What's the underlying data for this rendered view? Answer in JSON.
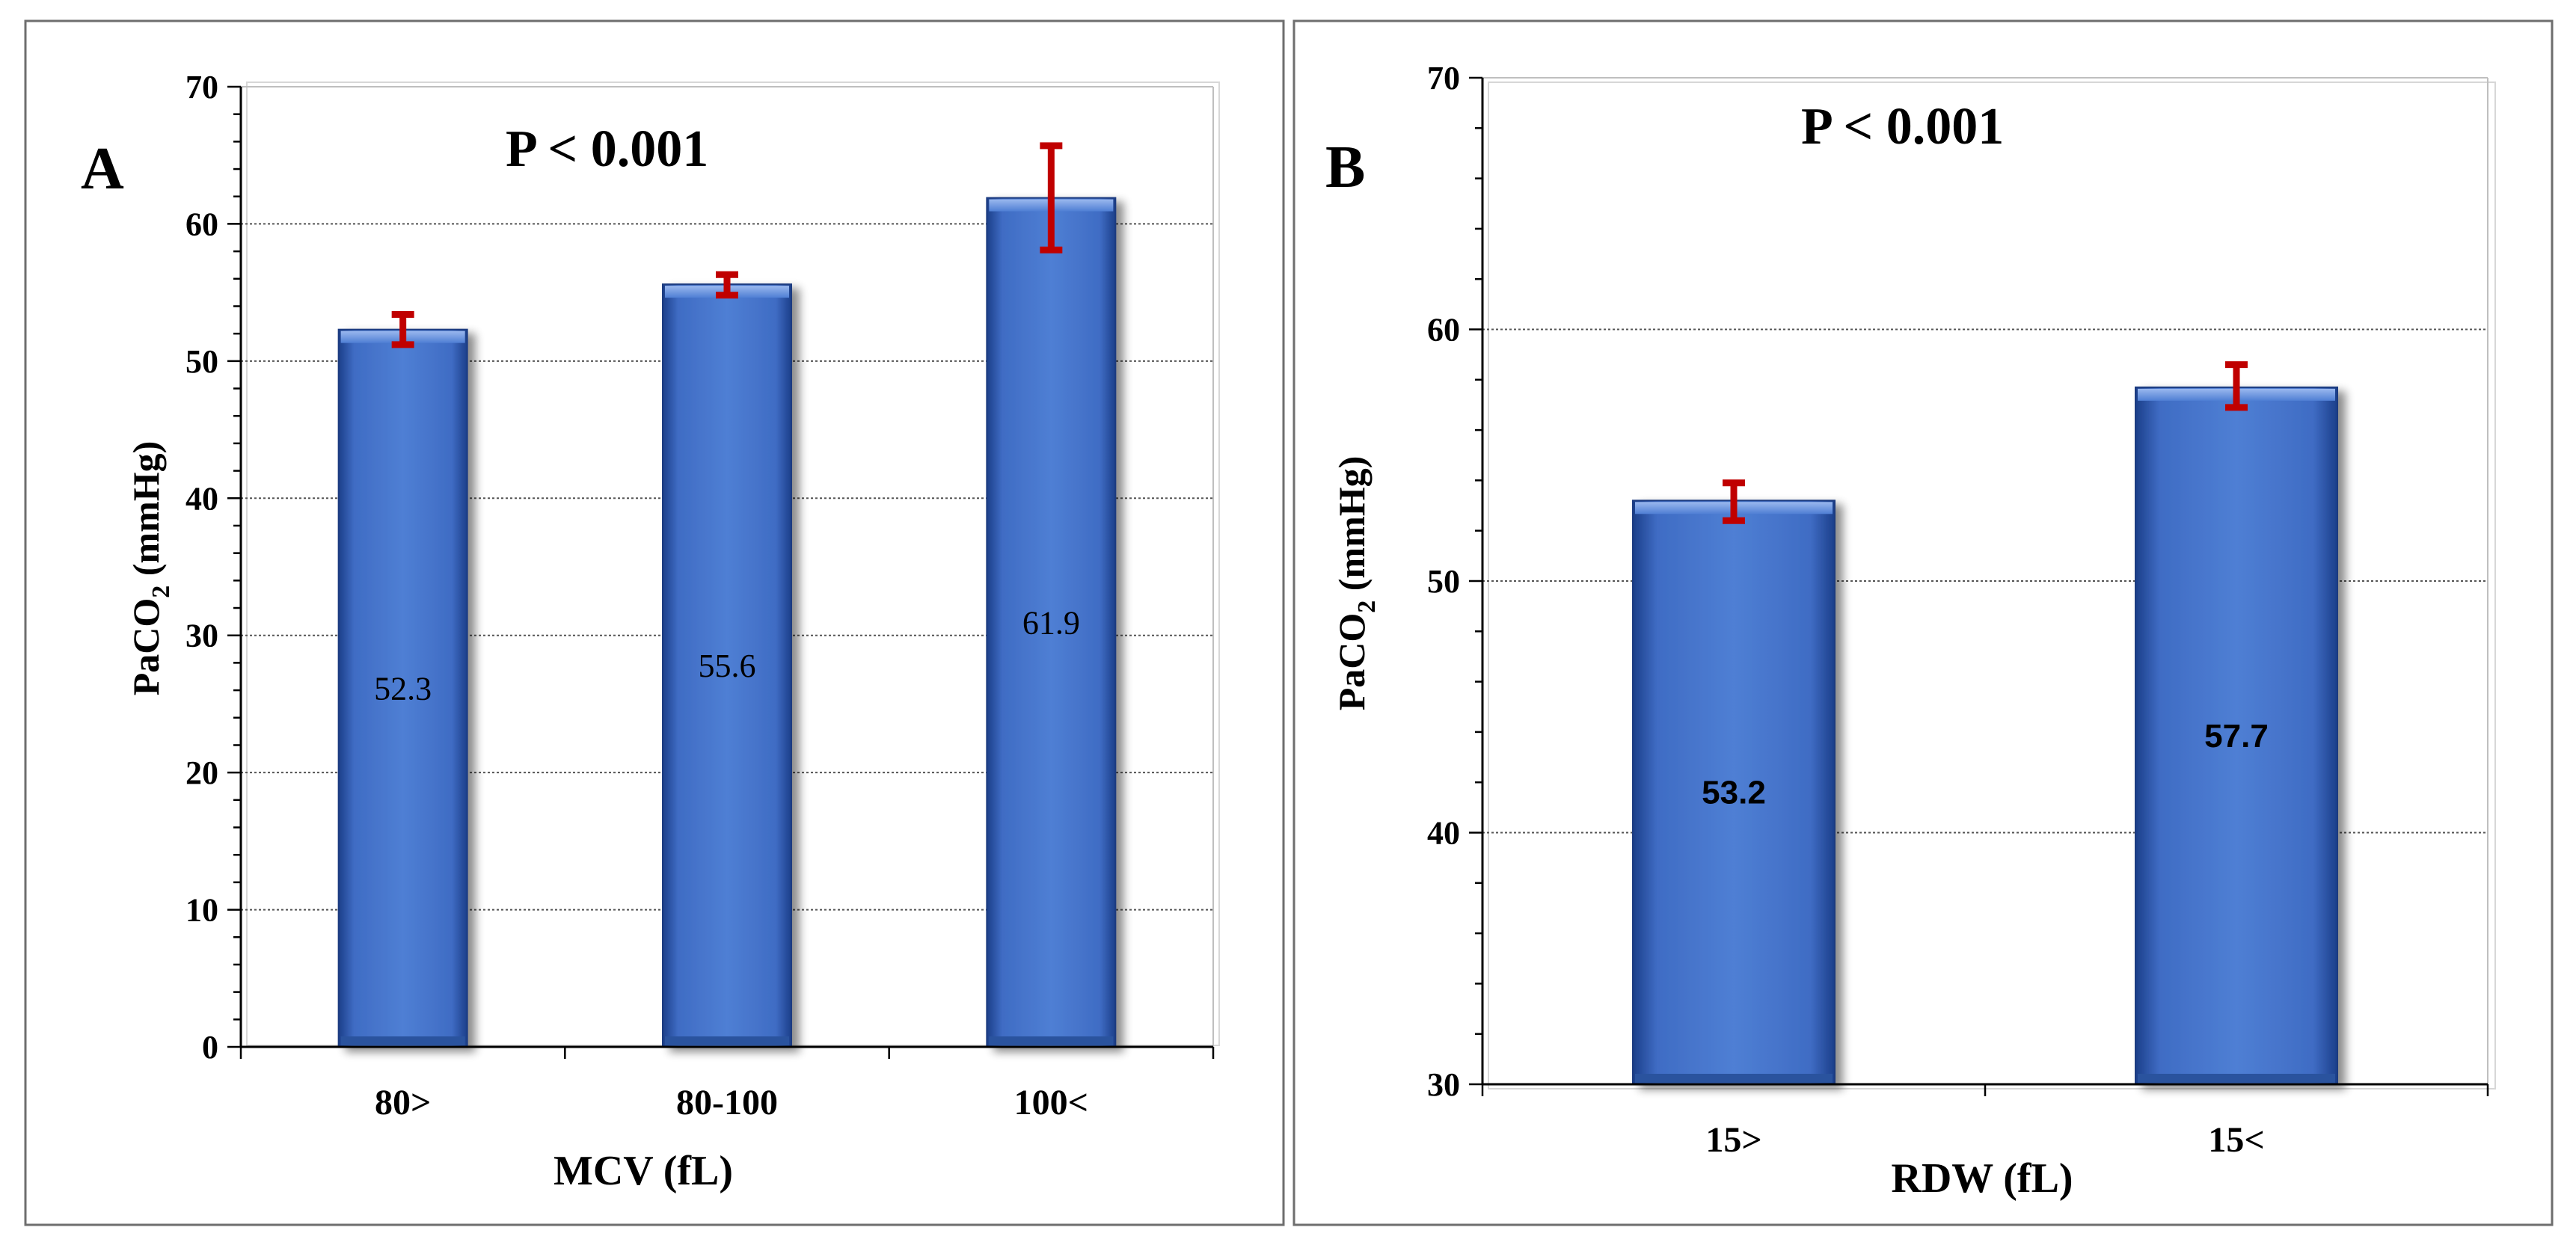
{
  "chart_data": [
    {
      "type": "bar",
      "panel": "A",
      "annotation": "P < 0.001",
      "categories": [
        "80>",
        "80-100",
        "100<"
      ],
      "values": [
        52.3,
        55.6,
        61.9
      ],
      "value_labels": [
        "52.3",
        "55.6",
        "61.9"
      ],
      "error_low": [
        51.2,
        54.8,
        58.1
      ],
      "error_high": [
        53.4,
        56.3,
        65.7
      ],
      "xlabel": "MCV (fL)",
      "ylabel_main": "PaCO",
      "ylabel_sub": "2",
      "ylabel_unit": " (mmHg)",
      "ylim": [
        0,
        70
      ],
      "yticks": [
        "0",
        "10",
        "20",
        "30",
        "40",
        "50",
        "60",
        "70"
      ],
      "grid": true,
      "bar_color": "#4a78cc",
      "error_color": "#c00000"
    },
    {
      "type": "bar",
      "panel": "B",
      "annotation": "P < 0.001",
      "categories": [
        "15>",
        "15<"
      ],
      "values": [
        53.2,
        57.7
      ],
      "value_labels": [
        "53.2",
        "57.7"
      ],
      "error_low": [
        52.4,
        56.9
      ],
      "error_high": [
        53.9,
        58.6
      ],
      "xlabel": "RDW (fL)",
      "ylabel_main": "PaCO",
      "ylabel_sub": "2",
      "ylabel_unit": " (mmHg)",
      "ylim": [
        30,
        70
      ],
      "yticks": [
        "30",
        "40",
        "50",
        "60",
        "70"
      ],
      "grid": true,
      "bar_color": "#4a78cc",
      "error_color": "#c00000"
    }
  ]
}
